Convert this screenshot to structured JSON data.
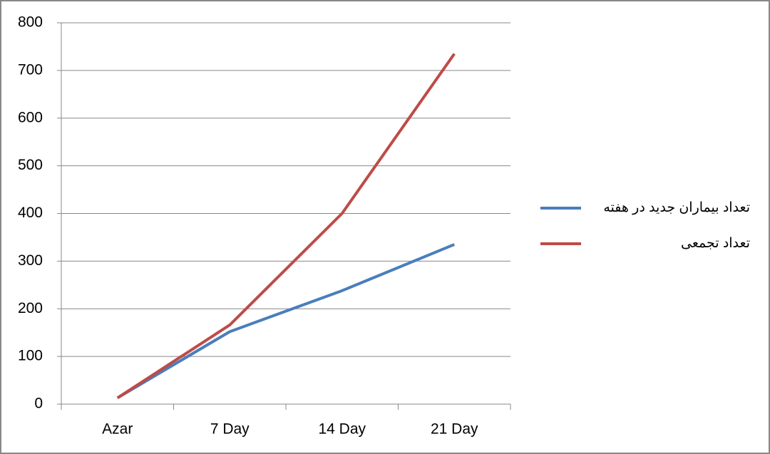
{
  "chart_data": {
    "type": "line",
    "categories": [
      "Azar",
      "7 Day",
      "14 Day",
      "21 Day"
    ],
    "series": [
      {
        "name": "تعداد بیماران جدید در هفته",
        "color": "#4a7ebb",
        "values": [
          13,
          152,
          238,
          335
        ]
      },
      {
        "name": "تعداد تجمعی",
        "color": "#be4b48",
        "values": [
          13,
          166,
          400,
          735
        ]
      }
    ],
    "ylim": [
      0,
      800
    ],
    "yticks": [
      0,
      100,
      200,
      300,
      400,
      500,
      600,
      700,
      800
    ],
    "grid": true,
    "legend": "right"
  }
}
